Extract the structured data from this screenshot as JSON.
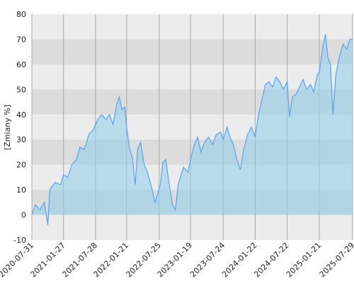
{
  "chart_data": {
    "type": "area",
    "y_label": "[Zmiany %]",
    "x": [
      "2020-07-31",
      "2020-08-20",
      "2020-09-15",
      "2020-10-10",
      "2020-10-30",
      "2020-11-10",
      "2020-12-10",
      "2021-01-10",
      "2021-01-27",
      "2021-02-20",
      "2021-03-15",
      "2021-04-10",
      "2021-05-01",
      "2021-05-25",
      "2021-06-20",
      "2021-07-15",
      "2021-08-10",
      "2021-09-01",
      "2021-09-25",
      "2021-10-15",
      "2021-11-05",
      "2021-11-25",
      "2021-12-10",
      "2021-12-25",
      "2022-01-10",
      "2022-01-21",
      "2022-02-05",
      "2022-02-25",
      "2022-03-10",
      "2022-03-25",
      "2022-04-10",
      "2022-05-01",
      "2022-05-20",
      "2022-06-15",
      "2022-07-01",
      "2022-07-15",
      "2022-08-01",
      "2022-08-15",
      "2022-09-01",
      "2022-09-20",
      "2022-10-10",
      "2022-10-25",
      "2022-11-10",
      "2022-12-10",
      "2023-01-05",
      "2023-01-19",
      "2023-02-10",
      "2023-03-01",
      "2023-03-20",
      "2023-04-10",
      "2023-05-01",
      "2023-05-25",
      "2023-06-15",
      "2023-07-10",
      "2023-07-24",
      "2023-08-15",
      "2023-09-01",
      "2023-09-20",
      "2023-10-10",
      "2023-10-30",
      "2023-11-15",
      "2023-12-10",
      "2024-01-01",
      "2024-01-22",
      "2024-02-10",
      "2024-03-01",
      "2024-03-20",
      "2024-04-10",
      "2024-05-01",
      "2024-05-20",
      "2024-06-10",
      "2024-07-01",
      "2024-07-22",
      "2024-08-05",
      "2024-08-20",
      "2024-09-10",
      "2024-10-01",
      "2024-10-20",
      "2024-11-10",
      "2024-12-01",
      "2024-12-20",
      "2025-01-10",
      "2025-01-21",
      "2025-02-10",
      "2025-02-25",
      "2025-03-10",
      "2025-03-25",
      "2025-04-08",
      "2025-04-25",
      "2025-05-15",
      "2025-06-05",
      "2025-06-25",
      "2025-07-15",
      "2025-07-29"
    ],
    "series": [
      {
        "color": "#5aa2ea",
        "values": [
          0,
          4,
          2,
          5,
          -4,
          10,
          13,
          12,
          16,
          15,
          20,
          22,
          27,
          26,
          32,
          34,
          38,
          40,
          38,
          40,
          36,
          44,
          47,
          42,
          43,
          35,
          27,
          22,
          12,
          26,
          29,
          20,
          17,
          10,
          5,
          8,
          12,
          21,
          22,
          12,
          4,
          2,
          12,
          19,
          17,
          22,
          28,
          31,
          25,
          29,
          31,
          28,
          32,
          33,
          30,
          35,
          31,
          28,
          22,
          18,
          25,
          32,
          35,
          31,
          40,
          46,
          52,
          53,
          51,
          55,
          53,
          50,
          53,
          39,
          47,
          48,
          51,
          54,
          50,
          52,
          49,
          56,
          57,
          67,
          72,
          63,
          60,
          40,
          56,
          63,
          68,
          66,
          70,
          70
        ]
      }
    ],
    "xlim": [
      "2020-07-31",
      "2025-07-29"
    ],
    "xticks": [
      "2020-07-31",
      "2021-01-27",
      "2021-07-28",
      "2022-01-21",
      "2022-07-25",
      "2023-01-19",
      "2023-07-24",
      "2024-01-22",
      "2024-07-22",
      "2025-01-21",
      "2025-07-29"
    ],
    "ylim": [
      -10,
      80
    ],
    "yticks": [
      -10,
      0,
      10,
      20,
      30,
      40,
      50,
      60,
      70,
      80
    ],
    "grid": true
  }
}
